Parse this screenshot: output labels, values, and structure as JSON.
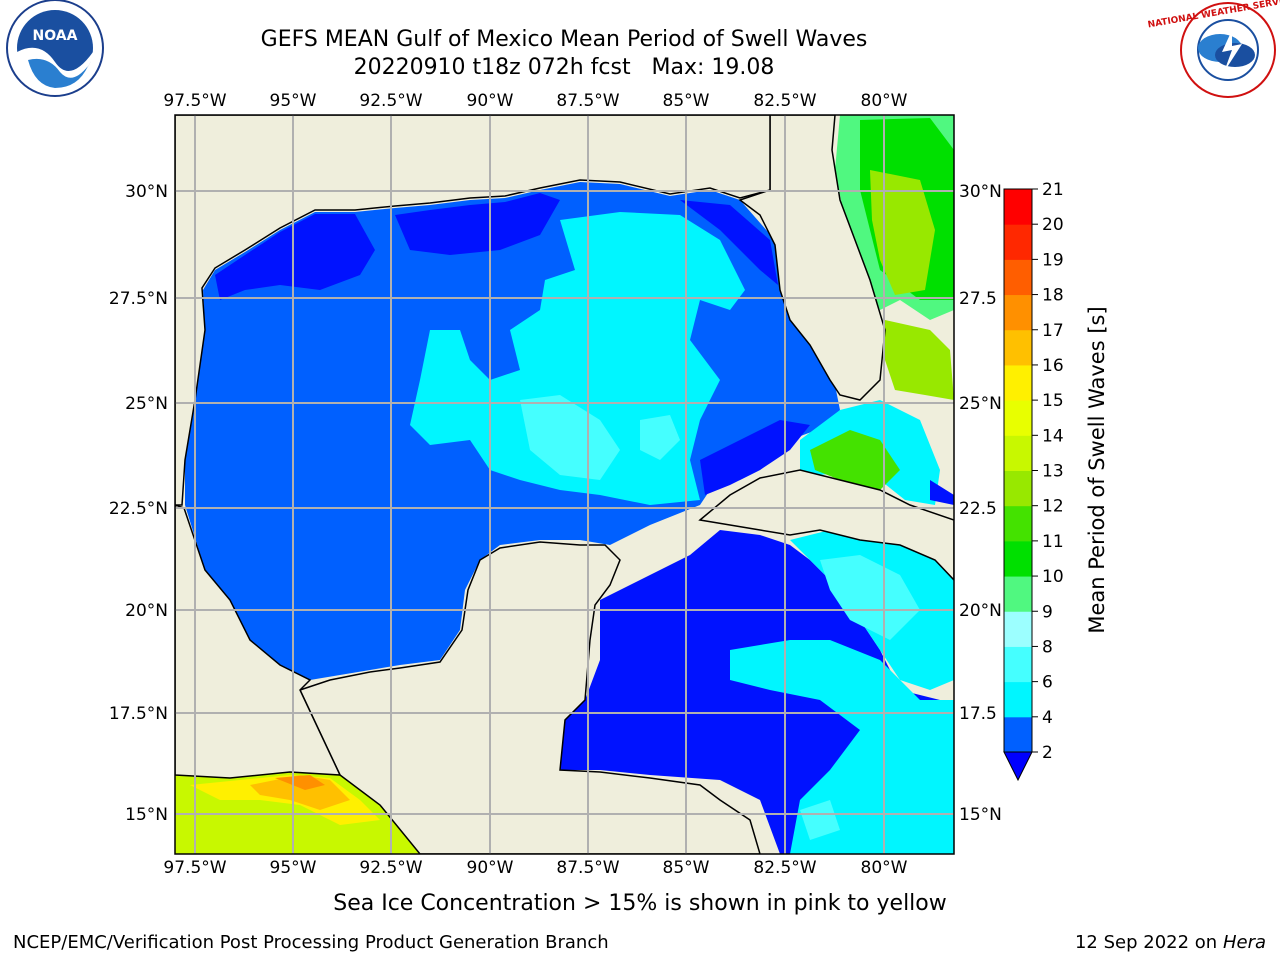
{
  "title_line1": "GEFS MEAN Gulf of Mexico Mean Period of Swell Waves",
  "title_line2": "20220910 t18z 072h fcst   Max: 19.08",
  "subtitle": "Sea Ice Concentration > 15% is shown in pink to yellow",
  "footer": {
    "left": "NCEP/EMC/Verification Post Processing Product Generation Branch",
    "date": "12 Sep 2022 on",
    "machine": "Hera"
  },
  "logos": {
    "left": {
      "name": "noaa-logo",
      "text": "NOAA"
    },
    "right": {
      "name": "nws-logo",
      "text": "NATIONAL WEATHER SERVICE"
    }
  },
  "map": {
    "lon_range": [
      -98.0,
      -78.3
    ],
    "lat_range": [
      14.0,
      31.8
    ],
    "lon_ticks": [
      "97.5°W",
      "95°W",
      "92.5°W",
      "90°W",
      "87.5°W",
      "85°W",
      "82.5°W",
      "80°W"
    ],
    "lat_ticks": [
      "30°N",
      "27.5°N",
      "25°N",
      "22.5°N",
      "20°N",
      "17.5°N",
      "15°N"
    ],
    "lat_ticks_right": [
      "30°N",
      "27.5",
      "25°N",
      "22.5",
      "20°N",
      "17.5",
      "15°N"
    ],
    "colors": {
      "land": "#efeedc",
      "ocean": "#ffffff",
      "grid": "#b0b0b0"
    }
  },
  "colorbar": {
    "label": "Mean Period of Swell Waves [s]",
    "ticks": [
      "2",
      "4",
      "6",
      "8",
      "9",
      "10",
      "11",
      "12",
      "13",
      "14",
      "15",
      "16",
      "17",
      "18",
      "19",
      "20",
      "21"
    ],
    "bands": [
      "#0012ff",
      "#0060ff",
      "#00f6ff",
      "#45ffff",
      "#9cffff",
      "#50f880",
      "#00e000",
      "#44e200",
      "#98e800",
      "#c8f800",
      "#e8ff00",
      "#fff000",
      "#ffc000",
      "#ff9000",
      "#ff5e00",
      "#ff2800",
      "#ff0000"
    ],
    "extend_color": "#0000ff"
  }
}
